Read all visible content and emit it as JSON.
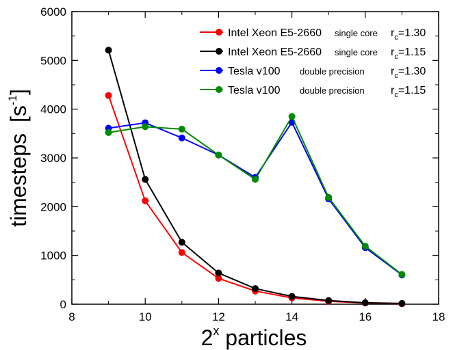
{
  "chart_data": {
    "type": "line",
    "xlabel": {
      "base": "2",
      "exp": "x",
      "rest": " particles"
    },
    "ylabel": {
      "main": "timesteps",
      "open": "[s",
      "exp": "-1",
      "close": "]"
    },
    "xlim": [
      8,
      18
    ],
    "ylim": [
      0,
      6000
    ],
    "xticks": [
      8,
      10,
      12,
      14,
      16,
      18
    ],
    "yticks": [
      0,
      1000,
      2000,
      3000,
      4000,
      5000,
      6000
    ],
    "grid": false,
    "legend_position": "top-right",
    "x": [
      9,
      10,
      11,
      12,
      13,
      14,
      15,
      16,
      17
    ],
    "series": [
      {
        "device": "Intel Xeon E5-2660",
        "mode": "single core",
        "rc": {
          "r": "r",
          "sub": "c",
          "val": "=1.30"
        },
        "color": "#ff0000",
        "values": [
          4280,
          2120,
          1060,
          530,
          270,
          130,
          60,
          25,
          10
        ]
      },
      {
        "device": "Intel Xeon E5-2660",
        "mode": "single core",
        "rc": {
          "r": "r",
          "sub": "c",
          "val": "=1.15"
        },
        "color": "#000000",
        "values": [
          5210,
          2560,
          1270,
          640,
          320,
          160,
          75,
          30,
          15
        ]
      },
      {
        "device": "Tesla v100",
        "mode": "double precision",
        "rc": {
          "r": "r",
          "sub": "c",
          "val": "=1.30"
        },
        "color": "#0000ff",
        "values": [
          3610,
          3720,
          3410,
          3060,
          2600,
          3730,
          2160,
          1160,
          600
        ]
      },
      {
        "device": "Tesla v100",
        "mode": "double precision",
        "rc": {
          "r": "r",
          "sub": "c",
          "val": "=1.15"
        },
        "color": "#008b00",
        "values": [
          3520,
          3640,
          3590,
          3060,
          2560,
          3850,
          2190,
          1190,
          610
        ]
      }
    ]
  }
}
